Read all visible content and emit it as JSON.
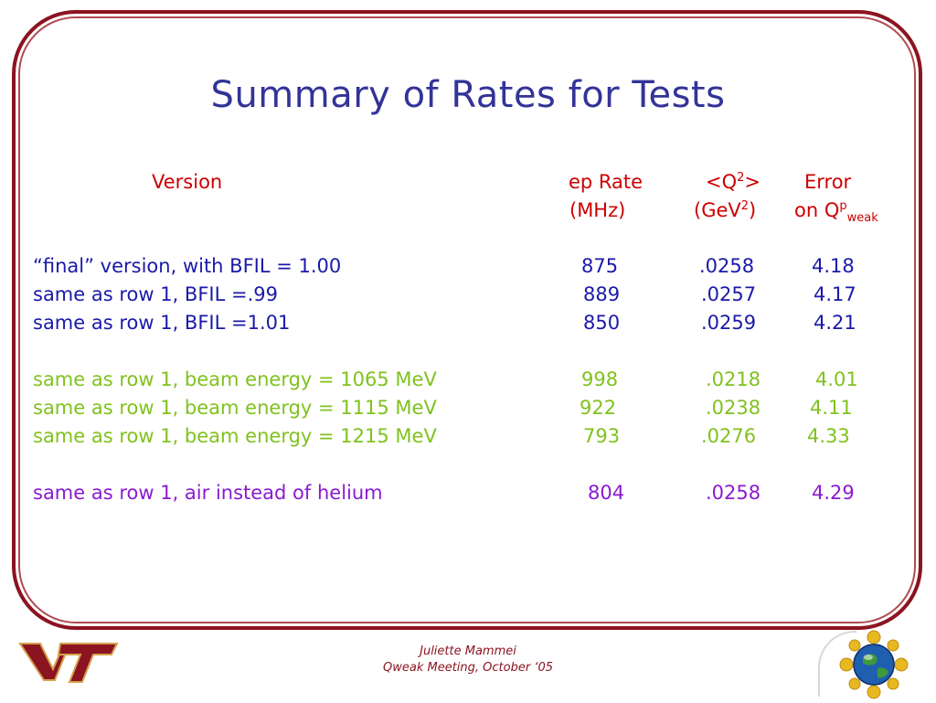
{
  "title": "Summary of Rates for Tests",
  "headers": {
    "version": "Version",
    "rate_line1": "ep Rate",
    "rate_line2": "(MHz)",
    "q2_line1_pre": "<Q",
    "q2_line1_sup": "2",
    "q2_line1_post": ">",
    "q2_line2_pre": "(GeV",
    "q2_line2_sup": "2",
    "q2_line2_post": ")",
    "err_line1": "Error",
    "err_line2_pre": "on Q",
    "err_line2_sup": "p",
    "err_line2_sub": "weak"
  },
  "rows": [
    {
      "label": "“final” version, with BFIL = 1.00",
      "rate": "875",
      "q2": ".0258",
      "error": "4.18",
      "color": "#1a1aa8"
    },
    {
      "label": "same as row 1, BFIL =.99",
      "rate": "889",
      "q2": ".0257",
      "error": "4.17",
      "color": "#1a1aa8"
    },
    {
      "label": "same as row 1, BFIL =1.01",
      "rate": "850",
      "q2": ".0259",
      "error": "4.21",
      "color": "#1a1aa8"
    },
    {
      "label": "same as row 1, beam energy = 1065 MeV",
      "rate": "998",
      "q2": ".0218",
      "error": "4.01",
      "color": "#80c21e"
    },
    {
      "label": "same as row 1, beam energy = 1115 MeV",
      "rate": "922",
      "q2": ".0238",
      "error": "4.11",
      "color": "#80c21e"
    },
    {
      "label": "same as row 1, beam energy = 1215 MeV",
      "rate": "793",
      "q2": ".0276",
      "error": "4.33",
      "color": "#80c21e"
    },
    {
      "label": "same as row 1, air instead of helium",
      "rate": "804",
      "q2": ".0258",
      "error": "4.29",
      "color": "#8a1ad0"
    }
  ],
  "footer": {
    "author": "Juliette Mammei",
    "event": "Qweak Meeting, October ‘05"
  },
  "logos": {
    "left": "VT",
    "left_color": "#8b1420",
    "left_outline": "#d4a24c"
  }
}
